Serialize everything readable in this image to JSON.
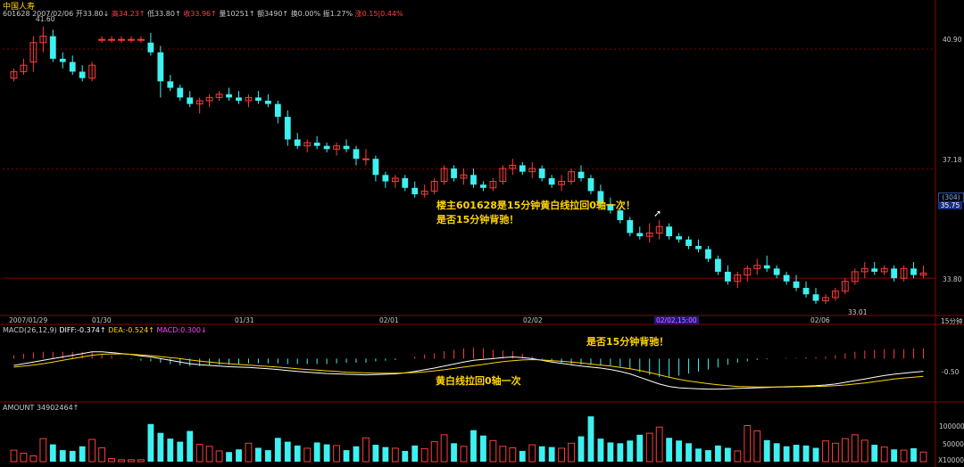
{
  "header": {
    "title": "中国人寿",
    "code_date": "601628 2007/02/06",
    "open": "开33.80↓",
    "high": "高34.23↑",
    "low": "低33.80↑",
    "close": "收33.96↑",
    "volume": "量10251↑",
    "amount": "额3490↑",
    "turnover": "换0.00%",
    "amplitude": "振1.27%",
    "change": "涨0.15|0.44%"
  },
  "price_axis": {
    "labels": [
      "40.90",
      "37.18",
      "33.80"
    ],
    "right_box": "(304)",
    "right_value": "35.75"
  },
  "markers": {
    "high_label": "41.60",
    "low_label": "33.01"
  },
  "time_axis": {
    "labels": [
      "2007/01/29",
      "01/30",
      "01/31",
      "02/01",
      "02/02",
      "02/05",
      "02/06"
    ],
    "cursor_label": "02/02,15:00",
    "period": "15分钟"
  },
  "annotations": {
    "main_line1": "楼主601628是15分钟黄白线拉回0轴一次！",
    "main_line2": "是否15分钟背驰！",
    "macd_top": "是否15分钟背驰！",
    "macd_bottom": "黄白线拉回0轴一次"
  },
  "macd_header": {
    "label": "MACD(26,12,9)",
    "diff": "DIFF:-0.374↑",
    "dea": "DEA:-0.524↑",
    "macd": "MACD:0.300↓"
  },
  "macd_axis": {
    "labels": [
      "-0.50"
    ]
  },
  "amount_header": {
    "label": "AMOUNT 34902464↑"
  },
  "amount_axis": {
    "labels": [
      "100000",
      "50000",
      "X10000"
    ]
  },
  "colors": {
    "up": "#ff3b3b",
    "down": "#3ef0f0",
    "diff": "#ffffff",
    "dea": "#ffd400",
    "background": "#000000",
    "grid": "#8b0000"
  },
  "chart_data": [
    {
      "type": "candlestick",
      "title": "中国人寿 15分钟",
      "x_ticks": [
        "2007/01/29",
        "01/30",
        "01/31",
        "02/01",
        "02/02",
        "02/05",
        "02/06"
      ],
      "ylim": [
        32.7,
        42.2
      ],
      "y_ticks": [
        40.9,
        37.18,
        33.8
      ],
      "candles": [
        [
          40.0,
          40.3,
          39.9,
          40.2
        ],
        [
          40.2,
          40.6,
          40.1,
          40.4
        ],
        [
          40.5,
          41.3,
          40.2,
          41.1
        ],
        [
          41.1,
          41.6,
          40.8,
          41.3
        ],
        [
          41.3,
          41.5,
          40.5,
          40.6
        ],
        [
          40.6,
          40.8,
          40.3,
          40.5
        ],
        [
          40.5,
          40.7,
          40.1,
          40.2
        ],
        [
          40.2,
          40.4,
          39.9,
          40.0
        ],
        [
          40.0,
          40.5,
          39.9,
          40.4
        ],
        [
          41.2,
          41.3,
          41.1,
          41.2
        ],
        [
          41.2,
          41.3,
          41.1,
          41.2
        ],
        [
          41.2,
          41.3,
          41.1,
          41.2
        ],
        [
          41.2,
          41.3,
          41.1,
          41.2
        ],
        [
          41.2,
          41.3,
          41.1,
          41.2
        ],
        [
          41.1,
          41.4,
          40.7,
          40.8
        ],
        [
          40.8,
          41.0,
          39.4,
          39.9
        ],
        [
          39.9,
          40.1,
          39.6,
          39.7
        ],
        [
          39.7,
          39.8,
          39.3,
          39.4
        ],
        [
          39.4,
          39.6,
          39.1,
          39.2
        ],
        [
          39.2,
          39.4,
          38.9,
          39.3
        ],
        [
          39.3,
          39.5,
          39.1,
          39.4
        ],
        [
          39.4,
          39.6,
          39.3,
          39.5
        ],
        [
          39.5,
          39.7,
          39.3,
          39.4
        ],
        [
          39.4,
          39.6,
          39.2,
          39.3
        ],
        [
          39.3,
          39.5,
          39.1,
          39.4
        ],
        [
          39.4,
          39.6,
          39.2,
          39.3
        ],
        [
          39.3,
          39.5,
          39.1,
          39.2
        ],
        [
          39.2,
          39.3,
          38.6,
          38.8
        ],
        [
          38.8,
          39.0,
          37.9,
          38.1
        ],
        [
          38.1,
          38.3,
          37.8,
          37.9
        ],
        [
          37.9,
          38.1,
          37.7,
          38.0
        ],
        [
          38.0,
          38.2,
          37.8,
          37.9
        ],
        [
          37.9,
          38.0,
          37.7,
          37.8
        ],
        [
          37.8,
          38.0,
          37.6,
          37.9
        ],
        [
          37.9,
          38.1,
          37.7,
          37.8
        ],
        [
          37.8,
          37.9,
          37.3,
          37.5
        ],
        [
          37.5,
          37.8,
          37.3,
          37.5
        ],
        [
          37.5,
          37.6,
          36.8,
          37.0
        ],
        [
          37.0,
          37.1,
          36.6,
          36.8
        ],
        [
          36.8,
          37.0,
          36.6,
          36.9
        ],
        [
          36.9,
          37.0,
          36.5,
          36.6
        ],
        [
          36.6,
          36.8,
          36.3,
          36.4
        ],
        [
          36.4,
          36.7,
          36.3,
          36.5
        ],
        [
          36.5,
          36.9,
          36.4,
          36.8
        ],
        [
          36.8,
          37.3,
          36.7,
          37.2
        ],
        [
          37.2,
          37.3,
          36.8,
          36.9
        ],
        [
          36.9,
          37.2,
          36.7,
          37.0
        ],
        [
          37.0,
          37.2,
          36.6,
          36.7
        ],
        [
          36.7,
          36.8,
          36.5,
          36.6
        ],
        [
          36.6,
          36.9,
          36.5,
          36.8
        ],
        [
          36.8,
          37.3,
          36.7,
          37.2
        ],
        [
          37.2,
          37.5,
          37.0,
          37.3
        ],
        [
          37.3,
          37.4,
          37.0,
          37.1
        ],
        [
          37.1,
          37.4,
          36.9,
          37.2
        ],
        [
          37.2,
          37.3,
          36.8,
          36.9
        ],
        [
          36.9,
          37.0,
          36.6,
          36.7
        ],
        [
          36.7,
          37.0,
          36.5,
          36.8
        ],
        [
          36.8,
          37.2,
          36.7,
          37.1
        ],
        [
          37.1,
          37.3,
          36.8,
          36.9
        ],
        [
          36.9,
          37.0,
          36.4,
          36.5
        ],
        [
          36.5,
          36.7,
          36.0,
          36.1
        ],
        [
          36.1,
          36.3,
          35.8,
          35.9
        ],
        [
          35.9,
          36.0,
          35.5,
          35.6
        ],
        [
          35.6,
          35.7,
          35.1,
          35.2
        ],
        [
          35.2,
          35.4,
          35.0,
          35.1
        ],
        [
          35.1,
          35.5,
          34.9,
          35.2
        ],
        [
          35.2,
          35.6,
          35.0,
          35.4
        ],
        [
          35.4,
          35.5,
          35.0,
          35.1
        ],
        [
          35.1,
          35.2,
          34.9,
          35.0
        ],
        [
          35.0,
          35.1,
          34.7,
          34.8
        ],
        [
          34.8,
          35.0,
          34.6,
          34.7
        ],
        [
          34.7,
          34.8,
          34.3,
          34.4
        ],
        [
          34.4,
          34.5,
          33.9,
          34.0
        ],
        [
          34.0,
          34.2,
          33.6,
          33.7
        ],
        [
          33.7,
          34.0,
          33.5,
          33.9
        ],
        [
          33.9,
          34.2,
          33.7,
          34.1
        ],
        [
          34.1,
          34.4,
          33.9,
          34.2
        ],
        [
          34.2,
          34.5,
          34.0,
          34.1
        ],
        [
          34.1,
          34.2,
          33.8,
          33.9
        ],
        [
          33.9,
          34.0,
          33.6,
          33.7
        ],
        [
          33.7,
          33.9,
          33.4,
          33.5
        ],
        [
          33.5,
          33.7,
          33.2,
          33.3
        ],
        [
          33.3,
          33.5,
          33.0,
          33.1
        ],
        [
          33.1,
          33.3,
          33.0,
          33.2
        ],
        [
          33.2,
          33.5,
          33.1,
          33.4
        ],
        [
          33.4,
          33.8,
          33.3,
          33.7
        ],
        [
          33.7,
          34.1,
          33.6,
          34.0
        ],
        [
          34.0,
          34.3,
          33.8,
          34.1
        ],
        [
          34.1,
          34.3,
          33.9,
          34.0
        ],
        [
          34.0,
          34.2,
          33.9,
          34.1
        ],
        [
          34.1,
          34.2,
          33.7,
          33.8
        ],
        [
          33.8,
          34.2,
          33.7,
          34.1
        ],
        [
          34.1,
          34.3,
          33.8,
          33.9
        ],
        [
          33.9,
          34.2,
          33.8,
          33.96
        ]
      ]
    },
    {
      "type": "line",
      "title": "MACD(26,12,9)",
      "ylim": [
        -1.2,
        0.8
      ],
      "y_ticks": [
        -0.5
      ],
      "series": [
        {
          "name": "DIFF",
          "values": [
            -0.2,
            -0.15,
            -0.1,
            -0.05,
            0.0,
            0.05,
            0.1,
            0.15,
            0.2,
            0.2,
            0.18,
            0.15,
            0.12,
            0.08,
            0.05,
            0.0,
            -0.05,
            -0.1,
            -0.15,
            -0.18,
            -0.2,
            -0.22,
            -0.24,
            -0.25,
            -0.26,
            -0.28,
            -0.3,
            -0.32,
            -0.35,
            -0.38,
            -0.4,
            -0.42,
            -0.44,
            -0.45,
            -0.46,
            -0.47,
            -0.48,
            -0.47,
            -0.46,
            -0.45,
            -0.42,
            -0.38,
            -0.33,
            -0.28,
            -0.22,
            -0.16,
            -0.1,
            -0.05,
            -0.02,
            0.0,
            0.03,
            0.05,
            0.03,
            0.0,
            -0.05,
            -0.1,
            -0.14,
            -0.18,
            -0.22,
            -0.25,
            -0.28,
            -0.32,
            -0.38,
            -0.45,
            -0.55,
            -0.65,
            -0.75,
            -0.82,
            -0.86,
            -0.88,
            -0.89,
            -0.9,
            -0.9,
            -0.89,
            -0.88,
            -0.87,
            -0.86,
            -0.85,
            -0.84,
            -0.83,
            -0.82,
            -0.81,
            -0.8,
            -0.78,
            -0.75,
            -0.7,
            -0.65,
            -0.6,
            -0.55,
            -0.5,
            -0.46,
            -0.43,
            -0.4,
            -0.374
          ]
        },
        {
          "name": "DEA",
          "values": [
            -0.25,
            -0.22,
            -0.19,
            -0.15,
            -0.1,
            -0.05,
            0.0,
            0.05,
            0.1,
            0.13,
            0.14,
            0.14,
            0.13,
            0.11,
            0.09,
            0.06,
            0.03,
            0.0,
            -0.04,
            -0.07,
            -0.1,
            -0.13,
            -0.15,
            -0.17,
            -0.19,
            -0.21,
            -0.23,
            -0.25,
            -0.27,
            -0.3,
            -0.32,
            -0.34,
            -0.36,
            -0.38,
            -0.4,
            -0.41,
            -0.42,
            -0.43,
            -0.43,
            -0.43,
            -0.42,
            -0.41,
            -0.39,
            -0.36,
            -0.33,
            -0.29,
            -0.25,
            -0.21,
            -0.17,
            -0.13,
            -0.09,
            -0.06,
            -0.04,
            -0.03,
            -0.04,
            -0.06,
            -0.08,
            -0.1,
            -0.13,
            -0.16,
            -0.19,
            -0.22,
            -0.26,
            -0.3,
            -0.35,
            -0.41,
            -0.48,
            -0.55,
            -0.61,
            -0.66,
            -0.7,
            -0.74,
            -0.77,
            -0.8,
            -0.82,
            -0.83,
            -0.84,
            -0.84,
            -0.84,
            -0.84,
            -0.83,
            -0.83,
            -0.82,
            -0.81,
            -0.8,
            -0.78,
            -0.75,
            -0.72,
            -0.68,
            -0.64,
            -0.6,
            -0.57,
            -0.55,
            -0.524
          ]
        }
      ],
      "histogram": [
        0.1,
        0.14,
        0.18,
        0.2,
        0.2,
        0.2,
        0.2,
        0.2,
        0.2,
        0.14,
        0.08,
        0.02,
        -0.02,
        -0.06,
        -0.08,
        -0.12,
        -0.16,
        -0.2,
        -0.22,
        -0.22,
        -0.2,
        -0.18,
        -0.18,
        -0.16,
        -0.14,
        -0.14,
        -0.14,
        -0.14,
        -0.16,
        -0.16,
        -0.16,
        -0.16,
        -0.16,
        -0.14,
        -0.12,
        -0.12,
        -0.12,
        -0.08,
        -0.06,
        -0.04,
        0.0,
        0.06,
        0.12,
        0.16,
        0.22,
        0.26,
        0.3,
        0.32,
        0.3,
        0.26,
        0.24,
        0.22,
        0.14,
        0.06,
        -0.02,
        -0.08,
        -0.12,
        -0.16,
        -0.18,
        -0.18,
        -0.18,
        -0.2,
        -0.24,
        -0.3,
        -0.4,
        -0.48,
        -0.54,
        -0.54,
        -0.5,
        -0.44,
        -0.38,
        -0.32,
        -0.26,
        -0.18,
        -0.12,
        -0.08,
        -0.04,
        -0.02,
        0.0,
        0.02,
        0.02,
        0.04,
        0.04,
        0.06,
        0.1,
        0.16,
        0.2,
        0.24,
        0.26,
        0.28,
        0.28,
        0.28,
        0.3,
        0.3
      ]
    },
    {
      "type": "bar",
      "title": "AMOUNT",
      "ylim": [
        0,
        130000
      ],
      "y_ticks": [
        100000,
        50000
      ],
      "values": [
        30000,
        22000,
        15000,
        60000,
        45000,
        30000,
        28000,
        40000,
        58000,
        36000,
        8000,
        5000,
        5000,
        5000,
        98000,
        75000,
        60000,
        52000,
        80000,
        45000,
        40000,
        28000,
        25000,
        32000,
        48000,
        36000,
        30000,
        62000,
        52000,
        42000,
        35000,
        50000,
        45000,
        42000,
        30000,
        40000,
        62000,
        44000,
        38000,
        35000,
        28000,
        42000,
        34000,
        52000,
        70000,
        48000,
        40000,
        82000,
        68000,
        55000,
        40000,
        36000,
        28000,
        44000,
        40000,
        38000,
        35000,
        48000,
        66000,
        118000,
        60000,
        50000,
        48000,
        55000,
        70000,
        74000,
        90000,
        62000,
        55000,
        48000,
        34000,
        30000,
        42000,
        36000,
        28000,
        94000,
        80000,
        56000,
        48000,
        40000,
        44000,
        42000,
        36000,
        54000,
        48000,
        60000,
        70000,
        56000,
        44000,
        38000,
        32000,
        30000,
        35000,
        25000
      ]
    }
  ]
}
